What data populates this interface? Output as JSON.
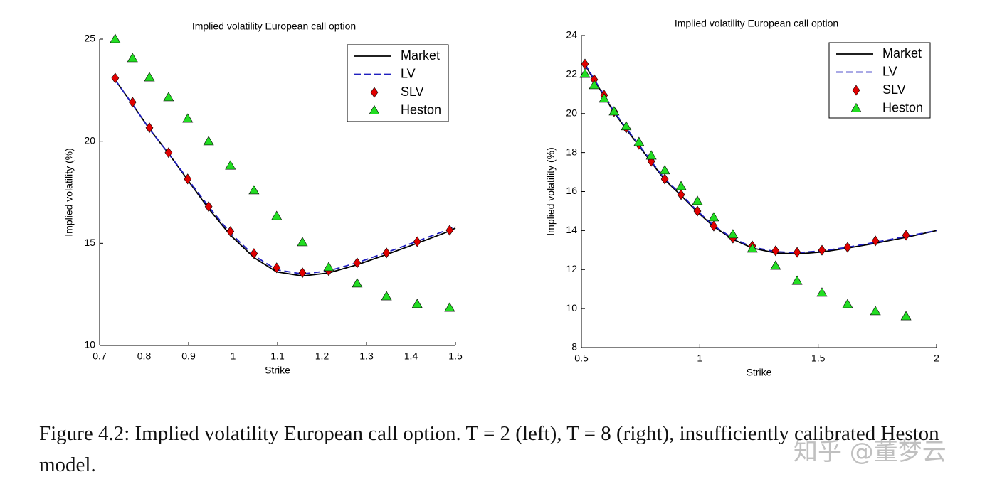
{
  "chart_data": [
    {
      "type": "line",
      "title": "Implied volatility European call option",
      "xlabel": "Strike",
      "ylabel": "Implied volatility (%)",
      "xlim": [
        0.7,
        1.5
      ],
      "xticks": [
        0.7,
        0.8,
        0.9,
        1,
        1.1,
        1.2,
        1.3,
        1.4,
        1.5
      ],
      "ylim": [
        10,
        25
      ],
      "yticks": [
        10,
        15,
        20,
        25
      ],
      "legend": "upper right",
      "series": [
        {
          "name": "Market",
          "color": "#000000",
          "line": "solid",
          "x": [
            0.735,
            0.774,
            0.812,
            0.855,
            0.898,
            0.945,
            0.994,
            1.047,
            1.098,
            1.156,
            1.215,
            1.279,
            1.345,
            1.414,
            1.487,
            1.5
          ],
          "values": [
            23.0,
            21.8,
            20.6,
            19.4,
            18.1,
            16.7,
            15.4,
            14.3,
            13.6,
            13.4,
            13.55,
            13.95,
            14.45,
            15.0,
            15.6,
            15.75
          ]
        },
        {
          "name": "LV",
          "color": "#1f1fbf",
          "line": "dashed",
          "x": [
            0.735,
            0.774,
            0.812,
            0.855,
            0.898,
            0.945,
            0.994,
            1.047,
            1.098,
            1.156,
            1.215,
            1.279,
            1.345,
            1.414,
            1.487,
            1.5
          ],
          "values": [
            23.0,
            21.8,
            20.6,
            19.4,
            18.15,
            16.8,
            15.5,
            14.4,
            13.7,
            13.5,
            13.65,
            14.05,
            14.55,
            15.1,
            15.7,
            15.85
          ]
        },
        {
          "name": "SLV",
          "color": "#e00000",
          "marker": "diamond",
          "x": [
            0.735,
            0.774,
            0.812,
            0.855,
            0.898,
            0.945,
            0.994,
            1.047,
            1.098,
            1.156,
            1.215,
            1.279,
            1.345,
            1.414,
            1.487
          ],
          "values": [
            23.09,
            21.91,
            20.66,
            19.44,
            18.15,
            16.8,
            15.58,
            14.5,
            13.8,
            13.56,
            13.66,
            14.04,
            14.53,
            15.08,
            15.64
          ]
        },
        {
          "name": "Heston",
          "color": "#22dd22",
          "marker": "triangle",
          "x": [
            0.735,
            0.774,
            0.812,
            0.855,
            0.898,
            0.945,
            0.994,
            1.047,
            1.098,
            1.156,
            1.215,
            1.279,
            1.345,
            1.414,
            1.487
          ],
          "values": [
            25.0,
            24.06,
            23.12,
            22.15,
            21.1,
            19.99,
            18.8,
            17.59,
            16.33,
            15.05,
            13.83,
            13.03,
            12.4,
            12.02,
            11.84
          ]
        }
      ]
    },
    {
      "type": "line",
      "title": "Implied volatility European call option",
      "xlabel": "Strike",
      "ylabel": "Implied volatility (%)",
      "xlim": [
        0.5,
        2
      ],
      "xticks": [
        0.5,
        1,
        1.5,
        2
      ],
      "ylim": [
        8,
        24
      ],
      "yticks": [
        8,
        10,
        12,
        14,
        16,
        18,
        20,
        22,
        24
      ],
      "legend": "upper right",
      "series": [
        {
          "name": "Market",
          "color": "#000000",
          "line": "solid",
          "x": [
            0.515,
            0.554,
            0.596,
            0.638,
            0.689,
            0.743,
            0.795,
            0.852,
            0.921,
            0.99,
            1.059,
            1.14,
            1.222,
            1.32,
            1.411,
            1.516,
            1.624,
            1.742,
            1.871,
            2
          ],
          "values": [
            22.5,
            21.7,
            20.9,
            20.05,
            19.2,
            18.35,
            17.5,
            16.6,
            15.8,
            14.95,
            14.2,
            13.55,
            13.1,
            12.85,
            12.8,
            12.9,
            13.1,
            13.35,
            13.65,
            14.0
          ]
        },
        {
          "name": "LV",
          "color": "#1f1fbf",
          "line": "dashed",
          "x": [
            0.515,
            0.554,
            0.596,
            0.638,
            0.689,
            0.743,
            0.795,
            0.852,
            0.921,
            0.99,
            1.059,
            1.14,
            1.222,
            1.32,
            1.411,
            1.516,
            1.624,
            1.742,
            1.871,
            2
          ],
          "values": [
            22.55,
            21.75,
            20.95,
            20.1,
            19.25,
            18.4,
            17.55,
            16.65,
            15.85,
            15.0,
            14.25,
            13.6,
            13.15,
            12.92,
            12.86,
            12.96,
            13.14,
            13.4,
            13.7,
            14.0
          ]
        },
        {
          "name": "SLV",
          "color": "#e00000",
          "marker": "diamond",
          "x": [
            0.515,
            0.554,
            0.596,
            0.638,
            0.689,
            0.743,
            0.795,
            0.852,
            0.921,
            0.99,
            1.059,
            1.14,
            1.222,
            1.32,
            1.411,
            1.516,
            1.624,
            1.742,
            1.871
          ],
          "values": [
            22.54,
            21.74,
            20.94,
            20.1,
            19.26,
            18.42,
            17.55,
            16.64,
            15.84,
            15.0,
            14.23,
            13.61,
            13.21,
            12.96,
            12.88,
            12.99,
            13.14,
            13.47,
            13.76
          ]
        },
        {
          "name": "Heston",
          "color": "#22dd22",
          "marker": "triangle",
          "x": [
            0.515,
            0.554,
            0.596,
            0.638,
            0.689,
            0.743,
            0.795,
            0.852,
            0.921,
            0.99,
            1.059,
            1.14,
            1.222,
            1.32,
            1.411,
            1.516,
            1.624,
            1.742,
            1.871
          ],
          "values": [
            22.03,
            21.45,
            20.76,
            20.1,
            19.34,
            18.53,
            17.84,
            17.08,
            16.27,
            15.51,
            14.67,
            13.8,
            13.07,
            12.19,
            11.42,
            10.81,
            10.22,
            9.86,
            9.6
          ]
        }
      ]
    }
  ],
  "caption": "Figure 4.2: Implied volatility European call option. T = 2 (left), T = 8 (right), insufficiently calibrated Heston model.",
  "watermark": "知乎 @董梦云"
}
